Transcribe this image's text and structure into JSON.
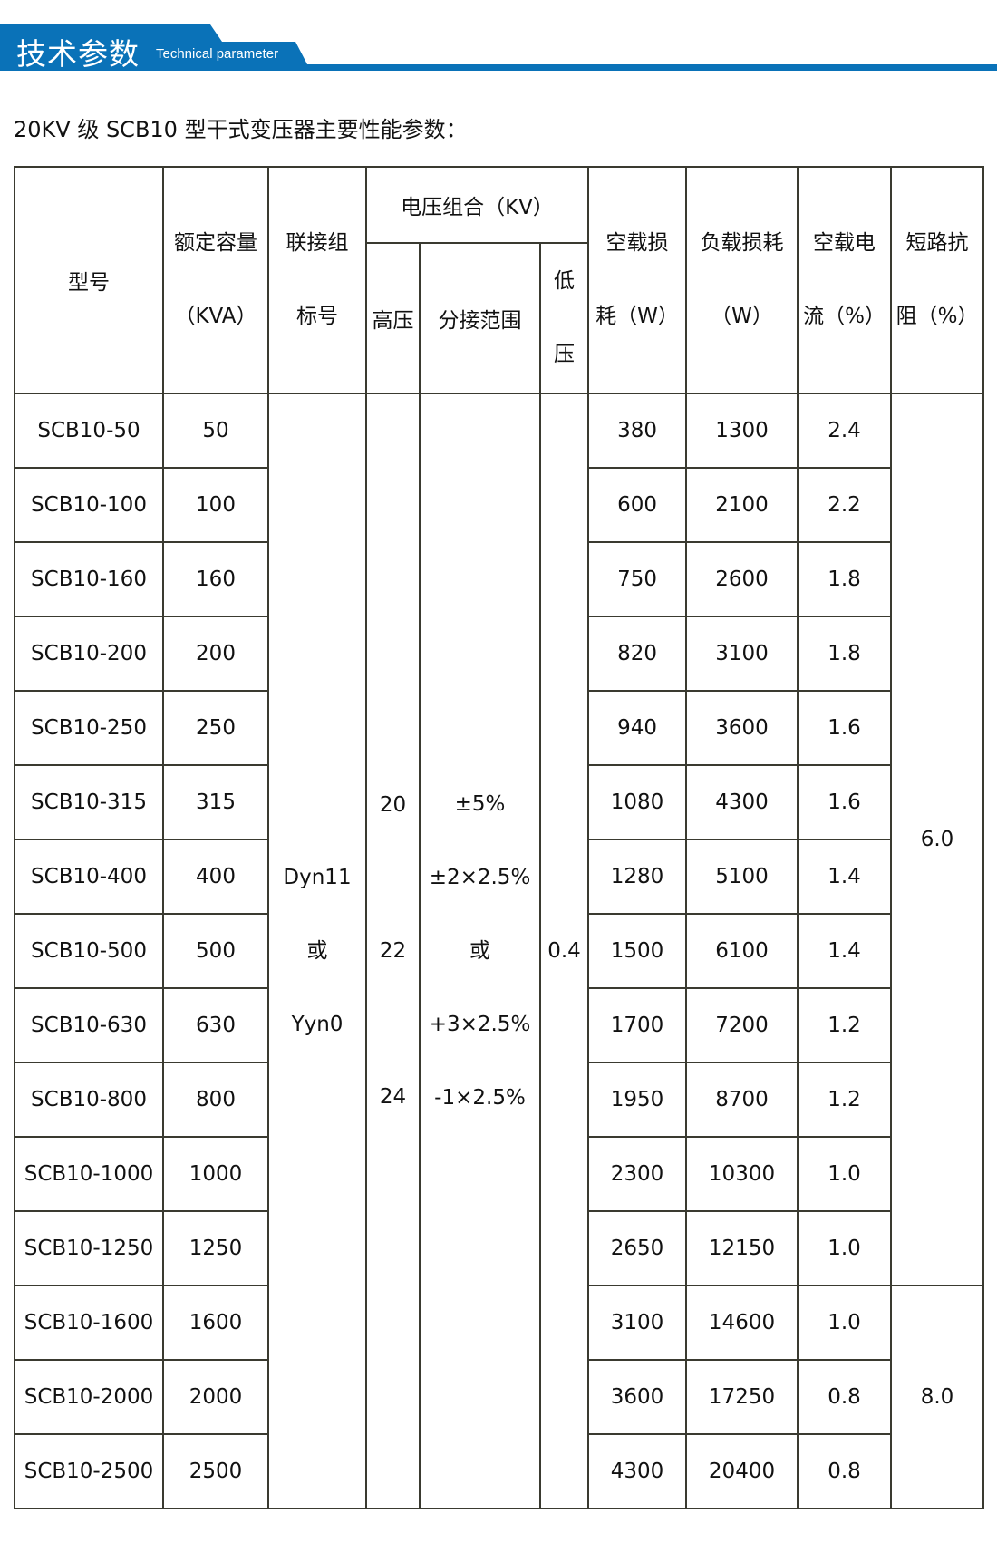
{
  "banner": {
    "title": "技术参数",
    "subtitle": "Technical parameter",
    "color": "#0a72b8"
  },
  "table_title": "20KV 级 SCB10 型干式变压器主要性能参数：",
  "headers": {
    "model": "型号",
    "capacity": [
      "额定容量",
      "（KVA）"
    ],
    "connection": [
      "联接组",
      "标号"
    ],
    "voltage_group": "电压组合（KV）",
    "hv": "高压",
    "tap": "分接范围",
    "lv": [
      "低",
      "压"
    ],
    "no_load_loss": [
      "空载损",
      "耗（W）"
    ],
    "load_loss": [
      "负载损耗",
      "（W）"
    ],
    "no_load_current": [
      "空载电",
      "流（%）"
    ],
    "impedance": [
      "短路抗",
      "阻（%）"
    ]
  },
  "merged": {
    "connection": [
      "Dyn11",
      "或",
      "Yyn0"
    ],
    "hv": [
      "20",
      "22",
      "24"
    ],
    "tap": [
      "±5%",
      "±2×2.5%",
      "或",
      "+3×2.5%",
      "-1×2.5%"
    ],
    "lv": "0.4",
    "impedance": [
      "6.0",
      "8.0"
    ]
  },
  "rows": [
    {
      "model": "SCB10-50",
      "capacity": "50",
      "no_load": "380",
      "load": "1300",
      "current": "2.4"
    },
    {
      "model": "SCB10-100",
      "capacity": "100",
      "no_load": "600",
      "load": "2100",
      "current": "2.2"
    },
    {
      "model": "SCB10-160",
      "capacity": "160",
      "no_load": "750",
      "load": "2600",
      "current": "1.8"
    },
    {
      "model": "SCB10-200",
      "capacity": "200",
      "no_load": "820",
      "load": "3100",
      "current": "1.8"
    },
    {
      "model": "SCB10-250",
      "capacity": "250",
      "no_load": "940",
      "load": "3600",
      "current": "1.6"
    },
    {
      "model": "SCB10-315",
      "capacity": "315",
      "no_load": "1080",
      "load": "4300",
      "current": "1.6"
    },
    {
      "model": "SCB10-400",
      "capacity": "400",
      "no_load": "1280",
      "load": "5100",
      "current": "1.4"
    },
    {
      "model": "SCB10-500",
      "capacity": "500",
      "no_load": "1500",
      "load": "6100",
      "current": "1.4"
    },
    {
      "model": "SCB10-630",
      "capacity": "630",
      "no_load": "1700",
      "load": "7200",
      "current": "1.2"
    },
    {
      "model": "SCB10-800",
      "capacity": "800",
      "no_load": "1950",
      "load": "8700",
      "current": "1.2"
    },
    {
      "model": "SCB10-1000",
      "capacity": "1000",
      "no_load": "2300",
      "load": "10300",
      "current": "1.0"
    },
    {
      "model": "SCB10-1250",
      "capacity": "1250",
      "no_load": "2650",
      "load": "12150",
      "current": "1.0"
    },
    {
      "model": "SCB10-1600",
      "capacity": "1600",
      "no_load": "3100",
      "load": "14600",
      "current": "1.0"
    },
    {
      "model": "SCB10-2000",
      "capacity": "2000",
      "no_load": "3600",
      "load": "17250",
      "current": "0.8"
    },
    {
      "model": "SCB10-2500",
      "capacity": "2500",
      "no_load": "4300",
      "load": "20400",
      "current": "0.8"
    }
  ]
}
